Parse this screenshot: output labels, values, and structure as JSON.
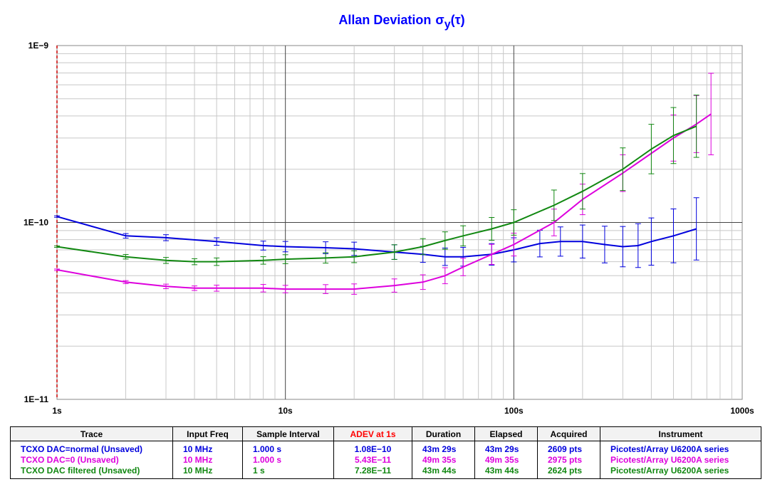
{
  "chart_data": {
    "type": "line",
    "title": "Allan Deviation",
    "title_symbol": "σ",
    "title_sub": "y",
    "title_arg": "(τ)",
    "x_scale": "log",
    "y_scale": "log",
    "xlim": [
      1,
      1000
    ],
    "ylim": [
      1e-11,
      1e-09
    ],
    "x_tick_labels": [
      "1s",
      "10s",
      "100s",
      "1000s"
    ],
    "y_tick_labels": [
      "1E−9",
      "1E−10",
      "1E−11"
    ],
    "grid": true,
    "series": [
      {
        "name": "TCXO DAC=normal (Unsaved)",
        "color": "#0000dd",
        "x": [
          1,
          2,
          3,
          5,
          8,
          10,
          15,
          20,
          30,
          40,
          50,
          60,
          80,
          100,
          130,
          160,
          200,
          250,
          300,
          350,
          400,
          500,
          630
        ],
        "y": [
          1.08e-10,
          8.4e-11,
          8.2e-11,
          7.8e-11,
          7.4e-11,
          7.3e-11,
          7.2e-11,
          7.1e-11,
          6.8e-11,
          6.6e-11,
          6.4e-11,
          6.4e-11,
          6.6e-11,
          7e-11,
          7.6e-11,
          7.8e-11,
          7.8e-11,
          7.5e-11,
          7.3e-11,
          7.4e-11,
          7.8e-11,
          8.4e-11,
          9.2e-11
        ],
        "err_frac": [
          0.01,
          0.03,
          0.04,
          0.05,
          0.06,
          0.07,
          0.08,
          0.09,
          0.1,
          0.11,
          0.12,
          0.13,
          0.15,
          0.17,
          0.19,
          0.21,
          0.24,
          0.27,
          0.3,
          0.33,
          0.36,
          0.42,
          0.5
        ]
      },
      {
        "name": "TCXO DAC=0 (Unsaved)",
        "color": "#dd00dd",
        "x": [
          1,
          2,
          3,
          4,
          5,
          8,
          10,
          15,
          20,
          30,
          40,
          50,
          60,
          80,
          100,
          150,
          200,
          300,
          500,
          630,
          730
        ],
        "y": [
          5.4e-11,
          4.6e-11,
          4.35e-11,
          4.25e-11,
          4.25e-11,
          4.25e-11,
          4.2e-11,
          4.2e-11,
          4.2e-11,
          4.4e-11,
          4.6e-11,
          5e-11,
          5.6e-11,
          6.6e-11,
          7.5e-11,
          1e-10,
          1.35e-10,
          1.9e-10,
          3e-10,
          3.6e-10,
          4.1e-10
        ],
        "err_frac": [
          0.01,
          0.02,
          0.03,
          0.03,
          0.04,
          0.05,
          0.05,
          0.06,
          0.07,
          0.09,
          0.1,
          0.11,
          0.12,
          0.14,
          0.16,
          0.19,
          0.22,
          0.27,
          0.35,
          0.45,
          0.7
        ]
      },
      {
        "name": "TCXO DAC filtered (Unsaved)",
        "color": "#118811",
        "x": [
          1,
          2,
          3,
          4,
          5,
          8,
          10,
          15,
          20,
          30,
          40,
          50,
          60,
          80,
          100,
          150,
          200,
          300,
          400,
          500,
          630
        ],
        "y": [
          7.3e-11,
          6.4e-11,
          6.1e-11,
          6e-11,
          6e-11,
          6.1e-11,
          6.2e-11,
          6.3e-11,
          6.4e-11,
          6.8e-11,
          7.3e-11,
          7.9e-11,
          8.4e-11,
          9.2e-11,
          1e-10,
          1.25e-10,
          1.5e-10,
          2e-10,
          2.6e-10,
          3.1e-10,
          3.5e-10
        ],
        "err_frac": [
          0.01,
          0.03,
          0.04,
          0.04,
          0.05,
          0.05,
          0.06,
          0.07,
          0.08,
          0.1,
          0.11,
          0.12,
          0.14,
          0.16,
          0.18,
          0.22,
          0.26,
          0.32,
          0.38,
          0.44,
          0.5
        ]
      }
    ]
  },
  "legend": {
    "headers": [
      "Trace",
      "Input Freq",
      "Sample Interval",
      "ADEV at 1s",
      "Duration",
      "Elapsed",
      "Acquired",
      "Instrument"
    ],
    "accent_header_index": 3,
    "rows": [
      {
        "color": "#0000dd",
        "cells": [
          "TCXO DAC=normal (Unsaved)",
          "10 MHz",
          "1.000 s",
          "1.08E−10",
          "43m 29s",
          "43m 29s",
          "2609 pts",
          "Picotest/Array U6200A series"
        ]
      },
      {
        "color": "#dd00dd",
        "cells": [
          "TCXO DAC=0 (Unsaved)",
          "10 MHz",
          "1.000 s",
          "5.43E−11",
          "49m 35s",
          "49m 35s",
          "2975 pts",
          "Picotest/Array U6200A series"
        ]
      },
      {
        "color": "#118811",
        "cells": [
          "TCXO DAC filtered (Unsaved)",
          "10 MHz",
          "1 s",
          "7.28E−11",
          "43m 44s",
          "43m 44s",
          "2624 pts",
          "Picotest/Array U6200A series"
        ]
      }
    ]
  }
}
